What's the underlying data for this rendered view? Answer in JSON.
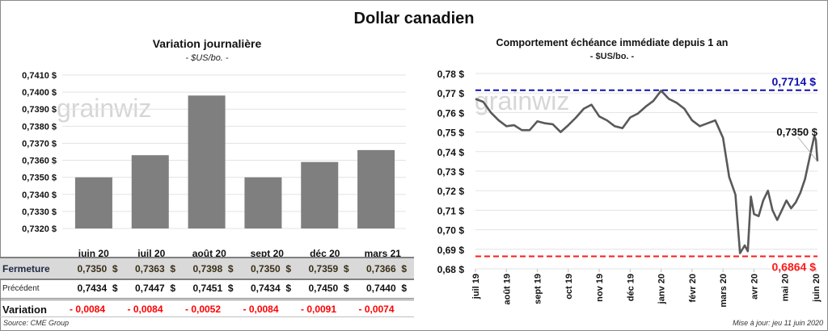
{
  "title": "Dollar canadien",
  "colors": {
    "bar": "#7f7f7f",
    "line": "#595959",
    "max_line": "#1010b0",
    "min_line": "#ff1a1a",
    "grid": "#e3e3e3",
    "negative": "#ff0000",
    "closing_text": "#3a3018",
    "table_band": "#d9d9d9"
  },
  "watermark": "grainwiz",
  "chart_data": [
    {
      "type": "bar",
      "title": "Variation  journalière",
      "subtitle": "- $US/bo. -",
      "xlabel": "",
      "ylabel": "",
      "categories": [
        "juin 20",
        "juil 20",
        "août 20",
        "sept 20",
        "déc 20",
        "mars 21"
      ],
      "values": [
        0.735,
        0.7363,
        0.7398,
        0.735,
        0.7359,
        0.7366
      ],
      "ylim": [
        0.732,
        0.741
      ],
      "yticks": [
        "0,7410 $",
        "0,7400 $",
        "0,7390 $",
        "0,7380 $",
        "0,7370 $",
        "0,7360 $",
        "0,7350 $",
        "0,7340 $",
        "0,7330 $",
        "0,7320 $"
      ],
      "grid": true,
      "legend": "none"
    },
    {
      "type": "line",
      "title": "Comportement échéance immédiate depuis 1 an",
      "subtitle": "- $US/bo. -",
      "xlabel": "",
      "ylabel": "",
      "ylim": [
        0.68,
        0.78
      ],
      "yticks": [
        "0,78 $",
        "0,77 $",
        "0,76 $",
        "0,75 $",
        "0,74 $",
        "0,73 $",
        "0,72 $",
        "0,71 $",
        "0,70 $",
        "0,69 $",
        "0,68 $"
      ],
      "xticks": [
        "juil 19",
        "août 19",
        "sept 19",
        "oct 19",
        "nov 19",
        "déc 19",
        "janv 20",
        "févr 20",
        "mars 20",
        "avr 20",
        "mai 20",
        "juin 20"
      ],
      "x_months": [
        0,
        0.25,
        0.5,
        0.75,
        1,
        1.25,
        1.5,
        1.75,
        2,
        2.25,
        2.5,
        2.75,
        3,
        3.25,
        3.5,
        3.75,
        4,
        4.25,
        4.5,
        4.75,
        5,
        5.25,
        5.5,
        5.75,
        6,
        6.25,
        6.5,
        6.75,
        7,
        7.25,
        7.5,
        7.75,
        8,
        8.2,
        8.4,
        8.55,
        8.7,
        8.8,
        8.9,
        9,
        9.15,
        9.3,
        9.45,
        9.6,
        9.75,
        9.9,
        10.05,
        10.2,
        10.35,
        10.5,
        10.65,
        10.8,
        10.95,
        11,
        11.05
      ],
      "values": [
        0.767,
        0.7655,
        0.76,
        0.756,
        0.753,
        0.7535,
        0.751,
        0.751,
        0.7555,
        0.7545,
        0.754,
        0.75,
        0.7535,
        0.7575,
        0.762,
        0.764,
        0.758,
        0.756,
        0.753,
        0.752,
        0.7575,
        0.7595,
        0.763,
        0.766,
        0.7712,
        0.767,
        0.765,
        0.762,
        0.756,
        0.753,
        0.7545,
        0.756,
        0.747,
        0.727,
        0.718,
        0.688,
        0.692,
        0.689,
        0.717,
        0.708,
        0.707,
        0.715,
        0.72,
        0.71,
        0.705,
        0.71,
        0.715,
        0.711,
        0.714,
        0.719,
        0.726,
        0.737,
        0.748,
        0.746,
        0.735
      ],
      "max": {
        "value": 0.7714,
        "label": "0,7714 $"
      },
      "min": {
        "value": 0.6864,
        "label": "0,6864 $"
      },
      "last": {
        "value": 0.735,
        "label": "0,7350 $"
      },
      "grid": true,
      "legend": "none"
    }
  ],
  "table": {
    "headers": [
      "juin 20",
      "juil 20",
      "août 20",
      "sept 20",
      "déc 20",
      "mars 21"
    ],
    "rows": [
      {
        "label": "Fermeture",
        "values": [
          "0,7350  $",
          "0,7363  $",
          "0,7398  $",
          "0,7350  $",
          "0,7359  $",
          "0,7366  $"
        ]
      },
      {
        "label": "Précédent",
        "values": [
          "0,7434  $",
          "0,7447  $",
          "0,7451  $",
          "0,7434  $",
          "0,7450  $",
          "0,7440  $"
        ]
      },
      {
        "label": "Variation",
        "values": [
          "- 0,0084",
          "- 0,0084",
          "- 0,0052",
          "- 0,0084",
          "- 0,0091",
          "- 0,0074"
        ]
      }
    ]
  },
  "footer": {
    "source": "Source: CME Group",
    "updated": "Mise à jour: jeu 11 juin 2020"
  }
}
